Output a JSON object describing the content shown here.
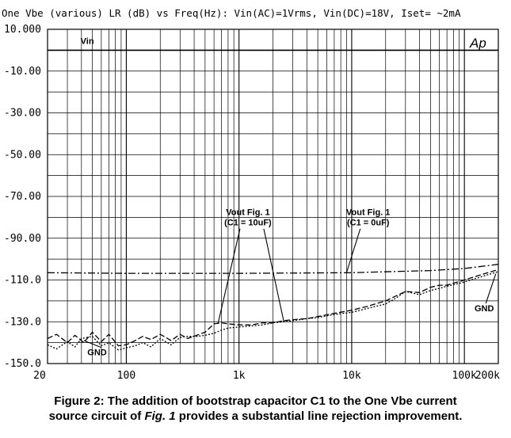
{
  "chart_data": {
    "type": "line",
    "title": "One Vbe (various) LR (dB) vs Freq(Hz): Vin(AC)=1Vrms, Vin(DC)=18V, Iset= ~2mA",
    "watermark": "Ap",
    "xlabel": "",
    "ylabel": "",
    "x_scale": "log",
    "xlim": [
      20,
      200000
    ],
    "ylim": [
      -150,
      10
    ],
    "grid": true,
    "x_tick_labels": [
      {
        "value": 20,
        "label": "20"
      },
      {
        "value": 100,
        "label": "100"
      },
      {
        "value": 1000,
        "label": "1k"
      },
      {
        "value": 10000,
        "label": "10k"
      },
      {
        "value": 100000,
        "label": "100k"
      },
      {
        "value": 200000,
        "label": "200k"
      }
    ],
    "y_tick_labels": [
      {
        "value": 10,
        "label": "10.000"
      },
      {
        "value": -10,
        "label": "-10.00"
      },
      {
        "value": -30,
        "label": "-30.00"
      },
      {
        "value": -50,
        "label": "-50.00"
      },
      {
        "value": -70,
        "label": "-70.00"
      },
      {
        "value": -90,
        "label": "-90.00"
      },
      {
        "value": -110,
        "label": "-110.0"
      },
      {
        "value": -130,
        "label": "-130.0"
      },
      {
        "value": -150,
        "label": "-150.0"
      }
    ],
    "series": [
      {
        "name": "Vin",
        "style": "solid",
        "x": [
          20,
          200000
        ],
        "y": [
          0,
          0
        ]
      },
      {
        "name": "Vout Fig. 1 (C1 = 0uF)",
        "style": "dashdot",
        "x": [
          20,
          100,
          1000,
          10000,
          50000,
          100000,
          200000
        ],
        "y": [
          -106.5,
          -106.8,
          -106.8,
          -106.5,
          -105.5,
          -104.5,
          -102.5
        ]
      },
      {
        "name": "Vout Fig. 1 (C1 = 10uF)",
        "style": "longdash",
        "x": [
          20,
          24,
          30,
          35,
          42,
          50,
          60,
          70,
          85,
          100,
          120,
          140,
          165,
          200,
          250,
          300,
          350,
          420,
          500,
          600,
          700,
          800,
          1000,
          1300,
          1600,
          2000,
          2500,
          3000,
          4000,
          5000,
          7000,
          10000,
          14000,
          20000,
          25000,
          30000,
          40000,
          50000,
          60000,
          70000,
          100000,
          150000,
          200000
        ],
        "y": [
          -138,
          -136,
          -140,
          -136.5,
          -140,
          -135,
          -139.5,
          -136,
          -141.5,
          -141,
          -139,
          -137,
          -138.5,
          -136,
          -139,
          -136,
          -138,
          -136.5,
          -135,
          -131,
          -130.5,
          -131,
          -131.5,
          -131.5,
          -130.5,
          -130.5,
          -129.5,
          -129,
          -128.5,
          -127.5,
          -126,
          -124.5,
          -122.5,
          -120,
          -117.5,
          -115.5,
          -116,
          -113.5,
          -112.5,
          -112.5,
          -110,
          -107,
          -105
        ]
      },
      {
        "name": "GND",
        "style": "dotted",
        "x": [
          20,
          24,
          30,
          35,
          40,
          50,
          60,
          70,
          85,
          100,
          120,
          140,
          165,
          200,
          250,
          300,
          350,
          420,
          500,
          600,
          700,
          800,
          1000,
          1300,
          1600,
          2000,
          2500,
          3000,
          4000,
          5000,
          7000,
          10000,
          14000,
          20000,
          25000,
          30000,
          40000,
          50000,
          60000,
          70000,
          100000,
          150000,
          200000
        ],
        "y": [
          -141,
          -143,
          -139.5,
          -142,
          -138,
          -137,
          -141.5,
          -140,
          -143.5,
          -142.5,
          -141.5,
          -140,
          -142,
          -138,
          -141,
          -137.5,
          -137,
          -137,
          -136.5,
          -135.5,
          -134,
          -133,
          -132.5,
          -132,
          -131.5,
          -130.5,
          -130,
          -129.5,
          -128.5,
          -128,
          -126.5,
          -125.5,
          -123.5,
          -121.5,
          -118.5,
          -115.5,
          -117,
          -115,
          -114,
          -113,
          -111,
          -108,
          -106
        ]
      }
    ],
    "annotations": [
      {
        "id": "vin",
        "lines": [
          "Vin"
        ],
        "x": 45,
        "y": 3
      },
      {
        "id": "c10",
        "lines": [
          "Vout Fig. 1",
          "(C1 = 10uF)"
        ],
        "x": 1200,
        "y": -79
      },
      {
        "id": "c0",
        "lines": [
          "Vout Fig. 1",
          "(C1 = 0uF)"
        ],
        "x": 14000,
        "y": -79
      },
      {
        "id": "gnd-left",
        "lines": [
          "GND"
        ],
        "x": 55,
        "y": -146
      },
      {
        "id": "gnd-right",
        "lines": [
          "GND"
        ],
        "x": 150000,
        "y": -125
      }
    ]
  },
  "caption": {
    "line1": "Figure 2: The addition of bootstrap capacitor C1 to the One Vbe current",
    "line2_pre": "source circuit of ",
    "line2_em": "Fig. 1",
    "line2_post": " provides a substantial line rejection improvement."
  }
}
